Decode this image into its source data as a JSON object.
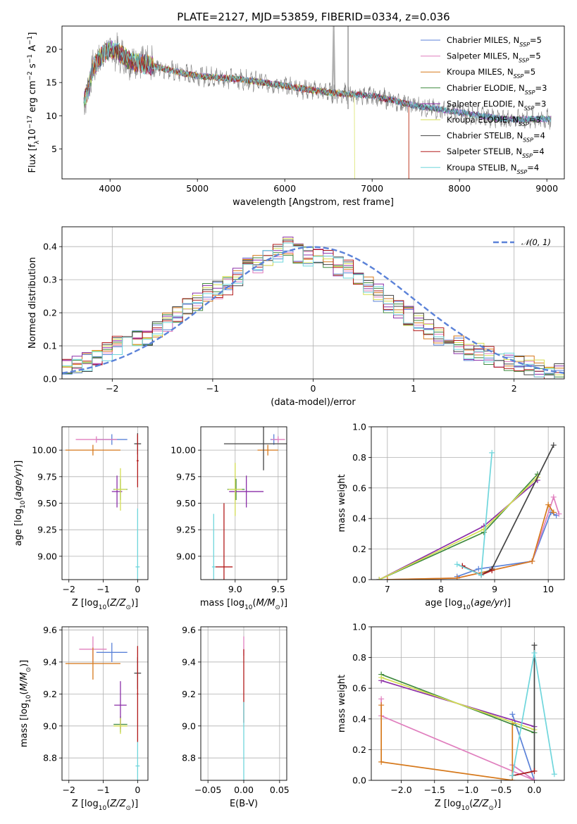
{
  "figure": {
    "title": "PLATE=2127, MJD=53859, FIBERID=0334, z=0.036"
  },
  "colors": {
    "Chabrier MILES": "#5b82d8",
    "Salpeter MILES": "#e07fbe",
    "Kroupa MILES": "#d6791c",
    "Chabrier ELODIE": "#3f8a3f",
    "Salpeter ELODIE": "#8b2fa8",
    "Kroupa ELODIE": "#d4de52",
    "Chabrier STELIB": "#444444",
    "Salpeter STELIB": "#b21b1b",
    "Kroupa STELIB": "#6fd6dc",
    "normal_curve": "#5b82d8",
    "data_spectrum": "#808080",
    "masked": "#b0b0b0"
  },
  "chart_data": [
    {
      "id": "spectrum",
      "type": "line",
      "xlabel": "wavelength [Angstrom, rest frame]",
      "ylabel": "Flux [f_λ 10^-17 erg cm^-2 s^-1 A^-1]",
      "xlim": [
        3450,
        9200
      ],
      "ylim": [
        0.5,
        23.5
      ],
      "xticks": [
        4000,
        5000,
        6000,
        7000,
        8000,
        9000
      ],
      "yticks": [
        5,
        10,
        15,
        20
      ],
      "grid": false,
      "legend": "top-right",
      "legend_entries": [
        {
          "name": "Chabrier MILES",
          "suffix": "=5"
        },
        {
          "name": "Salpeter MILES",
          "suffix": "=5"
        },
        {
          "name": "Kroupa MILES",
          "suffix": "=5"
        },
        {
          "name": "Chabrier ELODIE",
          "suffix": "=3"
        },
        {
          "name": "Salpeter ELODIE",
          "suffix": "=3"
        },
        {
          "name": "Kroupa ELODIE",
          "suffix": "=3"
        },
        {
          "name": "Chabrier STELIB",
          "suffix": "=4"
        },
        {
          "name": "Salpeter STELIB",
          "suffix": "=4"
        },
        {
          "name": "Kroupa STELIB",
          "suffix": "=4"
        }
      ],
      "continuum": {
        "x": [
          3700,
          3750,
          3800,
          3900,
          4000,
          4100,
          4200,
          4300,
          4500,
          4800,
          5000,
          5500,
          6000,
          6500,
          7000,
          7500,
          8000,
          8500,
          9000
        ],
        "y": [
          12,
          14,
          17,
          19,
          20,
          19.5,
          18.5,
          18,
          17.5,
          16.5,
          16,
          15.5,
          14.5,
          13.5,
          13,
          11.5,
          10.5,
          9.5,
          9.5
        ]
      },
      "model_cutoffs": [
        {
          "series": "Kroupa ELODIE",
          "x": 6800
        },
        {
          "series": "Kroupa MILES",
          "x": 7420
        },
        {
          "series": "Salpeter STELIB",
          "x": 7420
        }
      ]
    },
    {
      "id": "residuals",
      "type": "bar",
      "xlabel": "(data-model)/error",
      "ylabel": "Normed distribution",
      "xlim": [
        -2.5,
        2.5
      ],
      "ylim": [
        0,
        0.46
      ],
      "xticks": [
        -2,
        -1,
        0,
        1,
        2
      ],
      "yticks": [
        0.0,
        0.1,
        0.2,
        0.3,
        0.4
      ],
      "grid": true,
      "legend": "top-right",
      "legend_label": "𝒩(0, 1)",
      "bin_width": 0.1,
      "base_bins": [
        0.03,
        0.04,
        0.05,
        0.07,
        0.08,
        0.1,
        0.11,
        0.12,
        0.13,
        0.15,
        0.17,
        0.2,
        0.22,
        0.23,
        0.26,
        0.27,
        0.28,
        0.31,
        0.34,
        0.35,
        0.37,
        0.38,
        0.4,
        0.38,
        0.37,
        0.37,
        0.36,
        0.34,
        0.33,
        0.3,
        0.28,
        0.26,
        0.23,
        0.21,
        0.19,
        0.17,
        0.15,
        0.13,
        0.11,
        0.1,
        0.08,
        0.08,
        0.07,
        0.06,
        0.05,
        0.04,
        0.04,
        0.03,
        0.02,
        0.02
      ],
      "normal": {
        "mean": 0,
        "sigma": 1
      }
    },
    {
      "id": "age_vs_Z",
      "type": "scatter",
      "xlabel": "Z [log10(Z/Z⊙)]",
      "ylabel": "age  [log10(age/yr)]",
      "xlim": [
        -2.2,
        0.3
      ],
      "ylim": [
        8.78,
        10.22
      ],
      "xticks": [
        -2,
        -1,
        0
      ],
      "yticks": [
        9.0,
        9.25,
        9.5,
        9.75,
        10.0
      ],
      "grid": true,
      "points": [
        {
          "series": "Chabrier MILES",
          "x": -0.75,
          "y": 10.1,
          "xerr": 0.45,
          "yerr": 0.05
        },
        {
          "series": "Salpeter MILES",
          "x": -1.2,
          "y": 10.1,
          "xerr": 0.6,
          "yerr": 0.03
        },
        {
          "series": "Kroupa MILES",
          "x": -1.3,
          "y": 10.0,
          "xerr": 0.8,
          "yerr": 0.05
        },
        {
          "series": "Chabrier ELODIE",
          "x": -0.5,
          "y": 9.63,
          "xerr": 0.2,
          "yerr": 0.1
        },
        {
          "series": "Salpeter ELODIE",
          "x": -0.6,
          "y": 9.61,
          "xerr": 0.15,
          "yerr": 0.15
        },
        {
          "series": "Kroupa ELODIE",
          "x": -0.5,
          "y": 9.63,
          "xerr": 0.18,
          "yerr": 0.2
        },
        {
          "series": "Chabrier STELIB",
          "x": 0.0,
          "y": 10.06,
          "xerr": 0.1,
          "yerr": 0.1
        },
        {
          "series": "Salpeter STELIB",
          "x": 0.0,
          "y": 9.9,
          "xerr": 0.03,
          "yerr": 0.25
        },
        {
          "series": "Kroupa STELIB",
          "x": 0.0,
          "y": 8.9,
          "xerr": 0.06,
          "yerr": 0.55
        }
      ]
    },
    {
      "id": "age_vs_mass",
      "type": "scatter",
      "xlabel": "mass [log10(M/M⊙)]",
      "ylabel": "",
      "xlim": [
        8.6,
        9.6
      ],
      "ylim": [
        8.78,
        10.22
      ],
      "xticks": [
        9.0,
        9.5
      ],
      "yticks": [
        9.0,
        9.25,
        9.5,
        9.75,
        10.0
      ],
      "grid": true,
      "points": [
        {
          "series": "Chabrier MILES",
          "x": 9.45,
          "y": 10.1,
          "xerr": 0.04,
          "yerr": 0.05
        },
        {
          "series": "Salpeter MILES",
          "x": 9.5,
          "y": 10.1,
          "xerr": 0.08,
          "yerr": 0.03
        },
        {
          "series": "Kroupa MILES",
          "x": 9.38,
          "y": 10.0,
          "xerr": 0.12,
          "yerr": 0.05
        },
        {
          "series": "Chabrier ELODIE",
          "x": 9.01,
          "y": 9.63,
          "xerr": 0.1,
          "yerr": 0.1
        },
        {
          "series": "Salpeter ELODIE",
          "x": 9.13,
          "y": 9.61,
          "xerr": 0.2,
          "yerr": 0.15
        },
        {
          "series": "Kroupa ELODIE",
          "x": 9.0,
          "y": 9.63,
          "xerr": 0.08,
          "yerr": 0.25
        },
        {
          "series": "Chabrier STELIB",
          "x": 9.33,
          "y": 10.06,
          "xerr": 0.46,
          "yerr": 0.25
        },
        {
          "series": "Salpeter STELIB",
          "x": 8.87,
          "y": 8.9,
          "xerr": 0.1,
          "yerr": 0.6
        },
        {
          "series": "Kroupa STELIB",
          "x": 8.75,
          "y": 8.9,
          "xerr": 0.02,
          "yerr": 0.5
        }
      ]
    },
    {
      "id": "weight_vs_age",
      "type": "line",
      "xlabel": "age  [log10(age/yr)]",
      "ylabel": "mass weight",
      "xlim": [
        6.7,
        10.3
      ],
      "ylim": [
        0,
        1
      ],
      "xticks": [
        7,
        8,
        9,
        10
      ],
      "yticks": [
        0.0,
        0.2,
        0.4,
        0.6,
        0.8,
        1.0
      ],
      "grid": true,
      "series": [
        {
          "name": "Chabrier MILES",
          "x": [
            8.3,
            8.7,
            9.7,
            10.05,
            10.15
          ],
          "y": [
            0.02,
            0.07,
            0.12,
            0.44,
            0.42
          ]
        },
        {
          "name": "Salpeter MILES",
          "x": [
            7.0,
            8.3,
            9.7,
            10.1,
            10.2
          ],
          "y": [
            0.0,
            0.01,
            0.12,
            0.54,
            0.43
          ]
        },
        {
          "name": "Kroupa MILES",
          "x": [
            7.0,
            8.3,
            9.7,
            10.0,
            10.1
          ],
          "y": [
            0.0,
            0.01,
            0.12,
            0.49,
            0.44
          ]
        },
        {
          "name": "Chabrier ELODIE",
          "x": [
            6.85,
            8.8,
            9.8
          ],
          "y": [
            0.0,
            0.31,
            0.69
          ]
        },
        {
          "name": "Salpeter ELODIE",
          "x": [
            6.85,
            8.8,
            9.8
          ],
          "y": [
            0.0,
            0.35,
            0.65
          ]
        },
        {
          "name": "Kroupa ELODIE",
          "x": [
            6.85,
            8.8,
            9.8
          ],
          "y": [
            0.0,
            0.33,
            0.67
          ]
        },
        {
          "name": "Chabrier STELIB",
          "x": [
            8.4,
            8.75,
            8.95,
            10.1
          ],
          "y": [
            0.09,
            0.03,
            0.07,
            0.88
          ]
        },
        {
          "name": "Salpeter STELIB",
          "x": [
            8.4,
            8.75,
            8.95
          ],
          "y": [
            0.09,
            0.03,
            0.06
          ]
        },
        {
          "name": "Kroupa STELIB",
          "x": [
            8.3,
            8.75,
            8.95
          ],
          "y": [
            0.1,
            0.03,
            0.83
          ]
        }
      ]
    },
    {
      "id": "mass_vs_Z",
      "type": "scatter",
      "xlabel": "Z [log10(Z/Z⊙)]",
      "ylabel": "mass [log10(M/M⊙)]",
      "xlim": [
        -2.2,
        0.3
      ],
      "ylim": [
        8.66,
        9.62
      ],
      "xticks": [
        -2,
        -1,
        0
      ],
      "yticks": [
        8.8,
        9.0,
        9.2,
        9.4,
        9.6
      ],
      "grid": true,
      "points": [
        {
          "series": "Chabrier MILES",
          "x": -0.75,
          "y": 9.46,
          "xerr": 0.45,
          "yerr": 0.06
        },
        {
          "series": "Salpeter MILES",
          "x": -1.3,
          "y": 9.48,
          "xerr": 0.4,
          "yerr": 0.08
        },
        {
          "series": "Kroupa MILES",
          "x": -1.3,
          "y": 9.39,
          "xerr": 0.8,
          "yerr": 0.1
        },
        {
          "series": "Chabrier ELODIE",
          "x": -0.5,
          "y": 9.01,
          "xerr": 0.2,
          "yerr": 0.05
        },
        {
          "series": "Salpeter ELODIE",
          "x": -0.5,
          "y": 9.13,
          "xerr": 0.18,
          "yerr": 0.15
        },
        {
          "series": "Kroupa ELODIE",
          "x": -0.5,
          "y": 9.0,
          "xerr": 0.2,
          "yerr": 0.05
        },
        {
          "series": "Chabrier STELIB",
          "x": 0.0,
          "y": 9.33,
          "xerr": 0.1,
          "yerr": 0.1
        },
        {
          "series": "Salpeter STELIB",
          "x": 0.0,
          "y": 9.2,
          "xerr": 0.02,
          "yerr": 0.3
        },
        {
          "series": "Kroupa STELIB",
          "x": 0.0,
          "y": 8.75,
          "xerr": 0.06,
          "yerr": 0.15
        }
      ]
    },
    {
      "id": "mass_vs_EBV",
      "type": "scatter",
      "xlabel": "E(B-V)",
      "ylabel": "",
      "xlim": [
        -0.06,
        0.06
      ],
      "ylim": [
        8.66,
        9.62
      ],
      "xticks": [
        -0.05,
        0.0,
        0.05
      ],
      "yticks": [
        8.8,
        9.0,
        9.2,
        9.4,
        9.6
      ],
      "grid": true,
      "points": [
        {
          "series": "Salpeter MILES",
          "x": 0.0,
          "y": 9.5,
          "yerr": 0.06
        },
        {
          "series": "Salpeter STELIB",
          "x": 0.0,
          "y": 9.25,
          "yerr": 0.23
        },
        {
          "series": "Kroupa STELIB",
          "x": 0.0,
          "y": 8.9,
          "yerr": 0.25
        }
      ]
    },
    {
      "id": "weight_vs_Z",
      "type": "line",
      "xlabel": "Z [log10(Z/Z⊙)]",
      "ylabel": "mass weight",
      "xlim": [
        -2.45,
        0.45
      ],
      "ylim": [
        0,
        1
      ],
      "xticks": [
        -2.0,
        -1.5,
        -1.0,
        -0.5,
        0.0
      ],
      "yticks": [
        0.0,
        0.2,
        0.4,
        0.6,
        0.8,
        1.0
      ],
      "grid": true,
      "series": [
        {
          "name": "Chabrier MILES",
          "x": [
            -0.33,
            0.0,
            -0.33
          ],
          "y": [
            0.43,
            0.0,
            0.1
          ]
        },
        {
          "name": "Salpeter MILES",
          "x": [
            -2.3,
            -2.3,
            0.0,
            -0.33
          ],
          "y": [
            0.53,
            0.42,
            0.0,
            0.1
          ]
        },
        {
          "name": "Kroupa MILES",
          "x": [
            -2.3,
            -2.3,
            -0.33,
            -0.33
          ],
          "y": [
            0.49,
            0.12,
            0.0,
            0.37
          ]
        },
        {
          "name": "Chabrier ELODIE",
          "x": [
            -2.3,
            0.0
          ],
          "y": [
            0.69,
            0.31
          ]
        },
        {
          "name": "Salpeter ELODIE",
          "x": [
            -2.3,
            0.0
          ],
          "y": [
            0.65,
            0.35
          ]
        },
        {
          "name": "Kroupa ELODIE",
          "x": [
            -2.3,
            0.0
          ],
          "y": [
            0.67,
            0.33
          ]
        },
        {
          "name": "Chabrier STELIB",
          "x": [
            0.0,
            0.0,
            -0.33
          ],
          "y": [
            0.88,
            0.06,
            0.03
          ]
        },
        {
          "name": "Salpeter STELIB",
          "x": [
            0.0,
            -0.33
          ],
          "y": [
            0.06,
            0.03
          ]
        },
        {
          "name": "Kroupa STELIB",
          "x": [
            -0.33,
            0.0,
            0.3
          ],
          "y": [
            0.03,
            0.83,
            0.04
          ]
        }
      ]
    }
  ]
}
